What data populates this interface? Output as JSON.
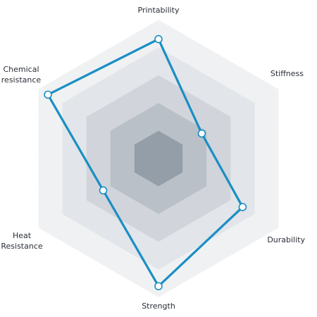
{
  "chart_data": {
    "type": "radar",
    "axes": [
      {
        "label": [
          "Printability"
        ]
      },
      {
        "label": [
          "Stiffness"
        ]
      },
      {
        "label": [
          "Durability"
        ]
      },
      {
        "label": [
          "Strength"
        ]
      },
      {
        "label": [
          "Heat",
          "Resistance"
        ]
      },
      {
        "label": [
          "Chemical",
          "resistance"
        ]
      }
    ],
    "levels": 5,
    "range": [
      0,
      5
    ],
    "series": [
      {
        "values": [
          4.3,
          1.8,
          3.5,
          4.6,
          2.3,
          4.6
        ]
      }
    ],
    "grid_colors": [
      "#f0f1f3",
      "#e2e5e9",
      "#d1d5db",
      "#b9c0c8",
      "#939ea8"
    ],
    "series_color": "#1a8ec4",
    "grid": true,
    "legend": "none"
  }
}
